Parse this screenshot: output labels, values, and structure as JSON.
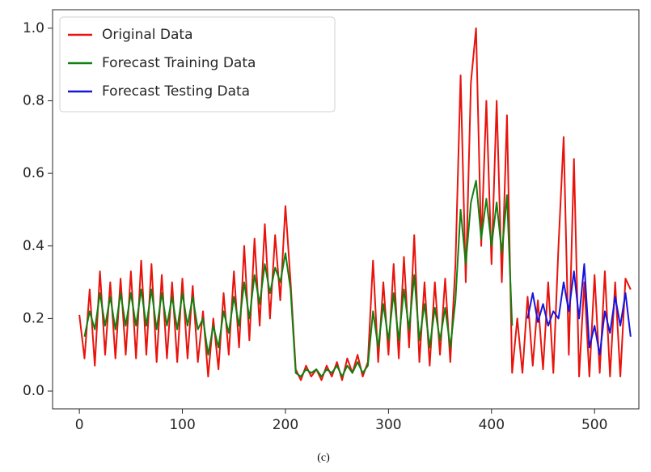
{
  "chart_data": {
    "type": "line",
    "caption": "(c)",
    "xlim": [
      -26,
      543
    ],
    "ylim": [
      -0.049,
      1.051
    ],
    "xticks": [
      0,
      100,
      200,
      300,
      400,
      500
    ],
    "yticks": [
      {
        "value": 0,
        "label": "0.0"
      },
      0.2,
      0.4,
      0.6,
      0.8,
      {
        "value": 1,
        "label": "1.0"
      }
    ],
    "legend": "upper left",
    "series": [
      {
        "name": "Original Data",
        "color": "#e8130c",
        "x": [
          0,
          5,
          10,
          15,
          20,
          25,
          30,
          35,
          40,
          45,
          50,
          55,
          60,
          65,
          70,
          75,
          80,
          85,
          90,
          95,
          100,
          105,
          110,
          115,
          120,
          125,
          130,
          135,
          140,
          145,
          150,
          155,
          160,
          165,
          170,
          175,
          180,
          185,
          190,
          195,
          200,
          205,
          210,
          215,
          220,
          225,
          230,
          235,
          240,
          245,
          250,
          255,
          260,
          265,
          270,
          275,
          280,
          285,
          290,
          295,
          300,
          305,
          310,
          315,
          320,
          325,
          330,
          335,
          340,
          345,
          350,
          355,
          360,
          365,
          370,
          375,
          380,
          385,
          390,
          395,
          400,
          405,
          410,
          415,
          420,
          425,
          430,
          435,
          440,
          445,
          450,
          455,
          460,
          465,
          470,
          475,
          480,
          485,
          490,
          495,
          500,
          505,
          510,
          515,
          520,
          525,
          530,
          535
        ],
        "values": [
          0.21,
          0.09,
          0.28,
          0.07,
          0.33,
          0.1,
          0.3,
          0.09,
          0.31,
          0.1,
          0.33,
          0.09,
          0.36,
          0.1,
          0.35,
          0.08,
          0.32,
          0.09,
          0.3,
          0.08,
          0.31,
          0.09,
          0.29,
          0.08,
          0.22,
          0.04,
          0.2,
          0.06,
          0.27,
          0.1,
          0.33,
          0.12,
          0.4,
          0.14,
          0.42,
          0.18,
          0.46,
          0.2,
          0.43,
          0.25,
          0.51,
          0.3,
          0.06,
          0.03,
          0.07,
          0.04,
          0.06,
          0.03,
          0.07,
          0.04,
          0.08,
          0.03,
          0.09,
          0.05,
          0.1,
          0.04,
          0.08,
          0.36,
          0.08,
          0.3,
          0.1,
          0.35,
          0.09,
          0.37,
          0.12,
          0.43,
          0.08,
          0.3,
          0.07,
          0.3,
          0.1,
          0.31,
          0.08,
          0.35,
          0.87,
          0.3,
          0.85,
          1.0,
          0.4,
          0.8,
          0.35,
          0.8,
          0.3,
          0.76,
          0.05,
          0.2,
          0.05,
          0.26,
          0.07,
          0.25,
          0.06,
          0.3,
          0.05,
          0.4,
          0.7,
          0.1,
          0.64,
          0.04,
          0.3,
          0.04,
          0.32,
          0.05,
          0.33,
          0.04,
          0.3,
          0.04,
          0.31,
          0.28
        ]
      },
      {
        "name": "Forecast Training Data",
        "color": "#118011",
        "x": [
          5,
          10,
          15,
          20,
          25,
          30,
          35,
          40,
          45,
          50,
          55,
          60,
          65,
          70,
          75,
          80,
          85,
          90,
          95,
          100,
          105,
          110,
          115,
          120,
          125,
          130,
          135,
          140,
          145,
          150,
          155,
          160,
          165,
          170,
          175,
          180,
          185,
          190,
          195,
          200,
          205,
          210,
          215,
          220,
          225,
          230,
          235,
          240,
          245,
          250,
          255,
          260,
          265,
          270,
          275,
          280,
          285,
          290,
          295,
          300,
          305,
          310,
          315,
          320,
          325,
          330,
          335,
          340,
          345,
          350,
          355,
          360,
          365,
          370,
          375,
          380,
          385,
          390,
          395,
          400,
          405,
          410,
          415,
          420
        ],
        "values": [
          0.15,
          0.22,
          0.17,
          0.27,
          0.18,
          0.26,
          0.17,
          0.27,
          0.18,
          0.27,
          0.18,
          0.28,
          0.18,
          0.28,
          0.17,
          0.27,
          0.18,
          0.26,
          0.17,
          0.27,
          0.18,
          0.26,
          0.17,
          0.2,
          0.1,
          0.18,
          0.12,
          0.22,
          0.16,
          0.26,
          0.18,
          0.3,
          0.2,
          0.32,
          0.24,
          0.35,
          0.27,
          0.34,
          0.3,
          0.38,
          0.28,
          0.05,
          0.04,
          0.06,
          0.05,
          0.06,
          0.04,
          0.06,
          0.05,
          0.07,
          0.04,
          0.07,
          0.05,
          0.08,
          0.05,
          0.07,
          0.22,
          0.12,
          0.24,
          0.14,
          0.27,
          0.14,
          0.28,
          0.17,
          0.32,
          0.14,
          0.24,
          0.12,
          0.23,
          0.14,
          0.23,
          0.12,
          0.25,
          0.5,
          0.35,
          0.52,
          0.58,
          0.42,
          0.53,
          0.4,
          0.52,
          0.38,
          0.54,
          0.18
        ]
      },
      {
        "name": "Forecast Testing Data",
        "color": "#1515e0",
        "x": [
          435,
          440,
          445,
          450,
          455,
          460,
          465,
          470,
          475,
          480,
          485,
          490,
          495,
          500,
          505,
          510,
          515,
          520,
          525,
          530,
          535
        ],
        "values": [
          0.2,
          0.27,
          0.19,
          0.24,
          0.18,
          0.22,
          0.2,
          0.3,
          0.22,
          0.33,
          0.2,
          0.35,
          0.12,
          0.18,
          0.1,
          0.22,
          0.16,
          0.26,
          0.18,
          0.27,
          0.15
        ]
      }
    ]
  }
}
